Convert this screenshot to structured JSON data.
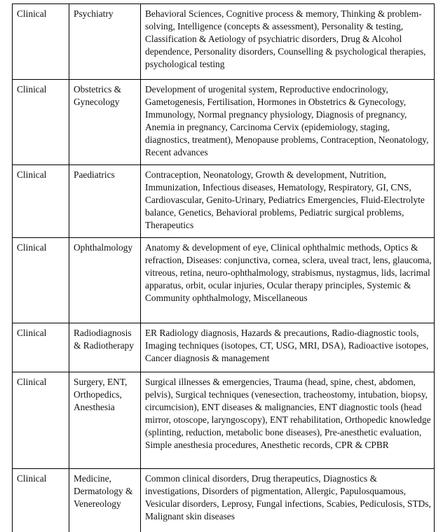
{
  "rows": [
    {
      "category": "Clinical",
      "subject": "Psychiatry",
      "topics": "Behavioral Sciences, Cognitive process & memory, Thinking & problem-solving, Intelligence (concepts & assessment), Personality & testing, Classification & Aetiology of psychiatric disorders, Drug & Alcohol dependence, Personality disorders, Counselling & psychological therapies, psychological testing"
    },
    {
      "category": "Clinical",
      "subject": "Obstetrics & Gynecology",
      "topics": "Development of urogenital system, Reproductive endocrinology, Gametogenesis, Fertilisation, Hormones in Obstetrics & Gynecology, Immunology, Normal pregnancy physiology, Diagnosis of pregnancy, Anemia in pregnancy, Carcinoma Cervix (epidemiology, staging, diagnostics, treatment), Menopause problems, Contraception, Neonatology, Recent advances"
    },
    {
      "category": "Clinical",
      "subject": "Paediatrics",
      "topics": "Contraception, Neonatology, Growth & development, Nutrition, Immunization, Infectious diseases, Hematology, Respiratory, GI, CNS, Cardiovascular, Genito-Urinary, Pediatrics Emergencies, Fluid-Electrolyte balance, Genetics, Behavioral problems, Pediatric surgical problems, Therapeutics"
    },
    {
      "category": "Clinical",
      "subject": "Ophthalmology",
      "topics": "Anatomy & development of eye, Clinical ophthalmic methods, Optics & refraction, Diseases: conjunctiva, cornea, sclera, uveal tract, lens, glaucoma, vitreous, retina, neuro-ophthalmology, strabismus, nystagmus, lids, lacrimal apparatus, orbit, ocular injuries, Ocular therapy principles, Systemic & Community ophthalmology, Miscellaneous"
    },
    {
      "category": "Clinical",
      "subject": "Radiodiagnosis & Radiotherapy",
      "topics": "ER Radiology diagnosis, Hazards & precautions, Radio-diagnostic tools, Imaging techniques (isotopes, CT, USG, MRI, DSA), Radioactive isotopes, Cancer diagnosis & management"
    },
    {
      "category": "Clinical",
      "subject": "Surgery, ENT, Orthopedics, Anesthesia",
      "topics": "Surgical illnesses & emergencies, Trauma (head, spine, chest, abdomen, pelvis), Surgical techniques (venesection, tracheostomy, intubation, biopsy, circumcision), ENT diseases & malignancies, ENT diagnostic tools (head mirror, otoscope, laryngoscopy), ENT rehabilitation, Orthopedic knowledge (splinting, reduction, metabolic bone diseases), Pre-anesthetic evaluation, Simple anesthesia procedures, Anesthetic records, CPR & CPBR"
    },
    {
      "category": "Clinical",
      "subject": "Medicine, Dermatology & Venereology",
      "topics": "Common clinical disorders, Drug therapeutics, Diagnostics & investigations, Disorders of pigmentation, Allergic, Papulosquamous, Vesicular disorders, Leprosy, Fungal infections, Scabies, Pediculosis, STDs, Malignant skin diseases"
    }
  ]
}
